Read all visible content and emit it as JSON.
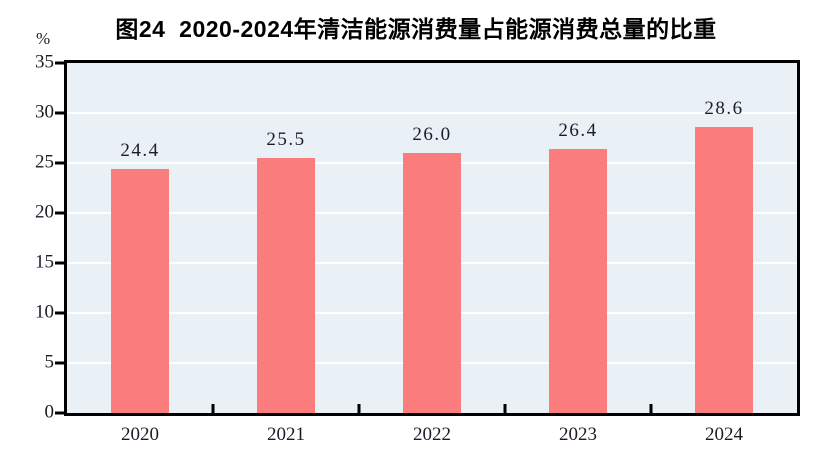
{
  "chart_data": {
    "type": "bar",
    "title": "图24  2020-2024年清洁能源消费量占能源消费总量的比重",
    "unit_label": "%",
    "categories": [
      "2020",
      "2021",
      "2022",
      "2023",
      "2024"
    ],
    "values": [
      24.4,
      25.5,
      26.0,
      26.4,
      28.6
    ],
    "value_labels": [
      "24.4",
      "25.5",
      "26.0",
      "26.4",
      "28.6"
    ],
    "xlabel": "",
    "ylabel": "%",
    "ylim": [
      0,
      35
    ],
    "yticks": [
      0,
      5,
      10,
      15,
      20,
      25,
      30,
      35
    ],
    "grid": true,
    "legend_position": "none",
    "colors": {
      "bar": "#FA7C7C",
      "plot_background": "#EAF1F6",
      "gridline": "#FFFFFF",
      "axis": "#000000",
      "text": "#1C1C28",
      "title_text": "#000000",
      "page_background": "#FFFFFF"
    }
  }
}
